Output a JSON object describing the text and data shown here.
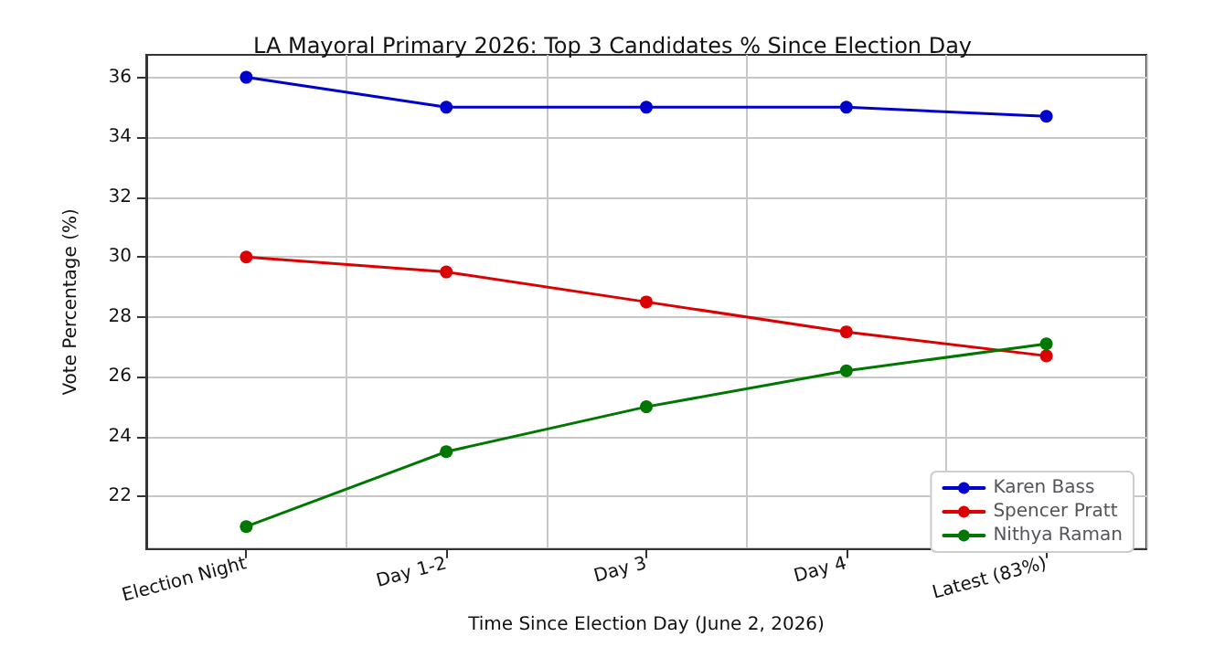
{
  "chart_data": {
    "type": "line",
    "title": "LA Mayoral Primary 2026: Top 3 Candidates % Since Election Day",
    "xlabel": "Time Since Election Day (June 2, 2026)",
    "ylabel": "Vote Percentage (%)",
    "categories": [
      "Election Night",
      "Day 1-2",
      "Day 3",
      "Day 4",
      "Latest (83%)"
    ],
    "series": [
      {
        "name": "Karen Bass",
        "color": "#0000cc",
        "values": [
          36,
          35,
          35,
          35,
          34.7
        ]
      },
      {
        "name": "Spencer Pratt",
        "color": "#dd0000",
        "values": [
          30,
          29.5,
          28.5,
          27.5,
          26.7
        ]
      },
      {
        "name": "Nithya Raman",
        "color": "#007700",
        "values": [
          21,
          23.5,
          25,
          26.2,
          27.1
        ]
      }
    ],
    "ylim": [
      20.25,
      36.75
    ],
    "yticks": [
      22,
      24,
      26,
      28,
      30,
      32,
      34,
      36
    ],
    "grid": true,
    "legend": "bottom right",
    "marker": "circle",
    "line_style": "solid"
  }
}
